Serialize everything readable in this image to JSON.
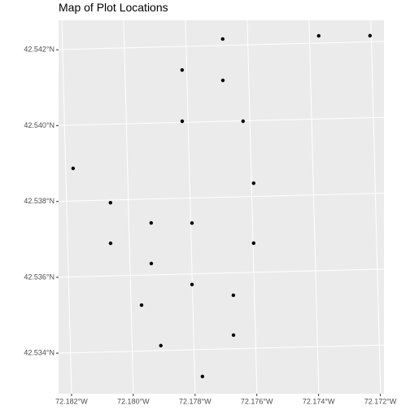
{
  "chart_data": {
    "type": "scatter",
    "title": "Map of Plot Locations",
    "color": "#000000",
    "x": [
      -72.17681,
      -72.1737,
      -72.17204,
      -72.17815,
      -72.17684,
      -72.17819,
      -72.17622,
      -72.18176,
      -72.17593,
      -72.18058,
      -72.17928,
      -72.17796,
      -72.18061,
      -72.17598,
      -72.17931,
      -72.17801,
      -72.17668,
      -72.17966,
      -72.17671,
      -72.17907,
      -72.17775
    ],
    "values": [
      42.54217,
      42.54219,
      42.54216,
      42.54138,
      42.54108,
      42.54003,
      42.53999,
      42.53886,
      42.53835,
      42.53793,
      42.53737,
      42.53734,
      42.53686,
      42.53677,
      42.5363,
      42.53572,
      42.53541,
      42.53521,
      42.53436,
      42.53413,
      42.53329
    ],
    "xlim": [
      -72.18242,
      -72.17189
    ],
    "ylim": [
      42.53293,
      42.54277
    ],
    "xticks": [
      {
        "value": -72.182,
        "label": "72.182°W"
      },
      {
        "value": -72.18,
        "label": "72.180°W"
      },
      {
        "value": -72.178,
        "label": "72.178°W"
      },
      {
        "value": -72.176,
        "label": "72.176°W"
      },
      {
        "value": -72.174,
        "label": "72.174°W"
      },
      {
        "value": -72.172,
        "label": "72.172°W"
      }
    ],
    "yticks": [
      {
        "value": 42.534,
        "label": "42.534°N"
      },
      {
        "value": 42.536,
        "label": "42.536°N"
      },
      {
        "value": 42.538,
        "label": "42.538°N"
      },
      {
        "value": 42.54,
        "label": "42.540°N"
      },
      {
        "value": 42.542,
        "label": "42.542°N"
      }
    ],
    "grid": true
  }
}
